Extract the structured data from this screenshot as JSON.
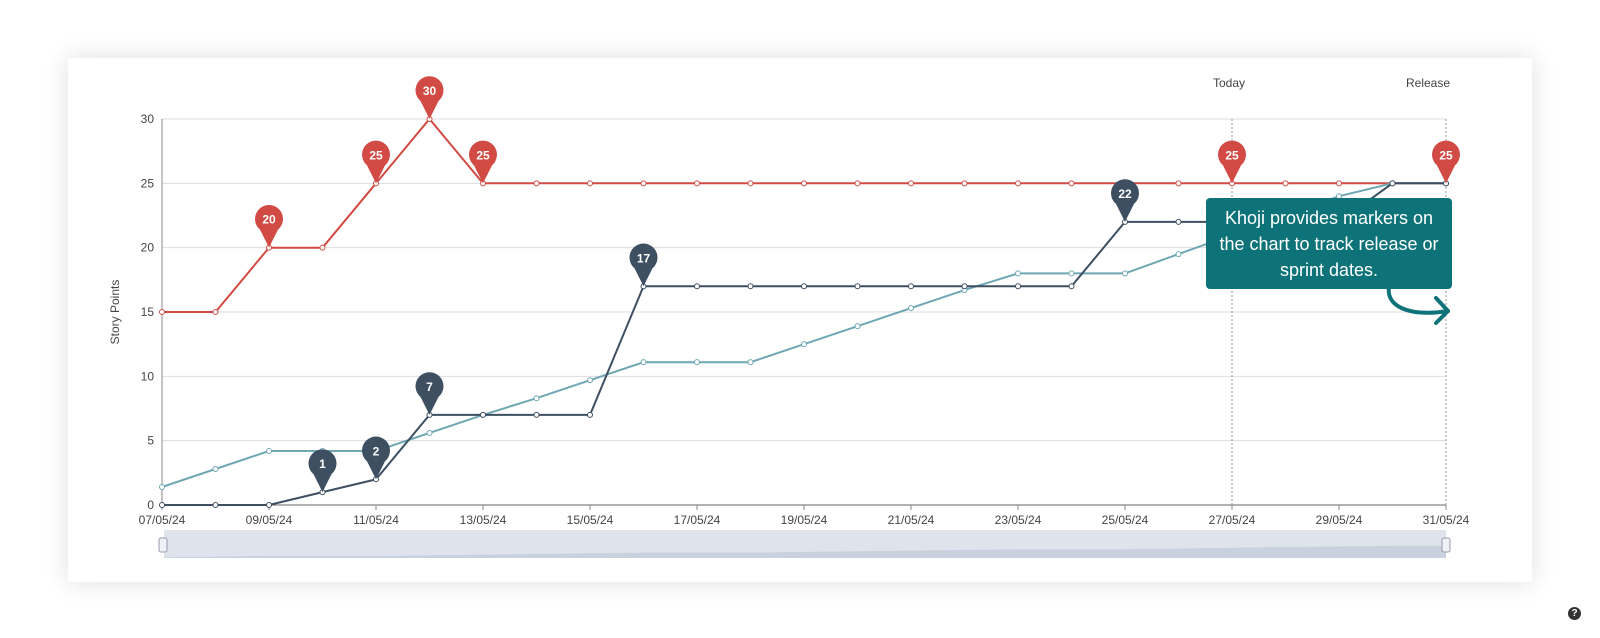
{
  "chart_data": {
    "type": "line",
    "ylabel": "Story Points",
    "ylim": [
      0,
      30
    ],
    "yticks": [
      0,
      5,
      10,
      15,
      20,
      25,
      30
    ],
    "x": [
      "07/05/24",
      "08/05/24",
      "09/05/24",
      "10/05/24",
      "11/05/24",
      "12/05/24",
      "13/05/24",
      "14/05/24",
      "15/05/24",
      "16/05/24",
      "17/05/24",
      "18/05/24",
      "19/05/24",
      "20/05/24",
      "21/05/24",
      "22/05/24",
      "23/05/24",
      "24/05/24",
      "25/05/24",
      "26/05/24",
      "27/05/24",
      "28/05/24",
      "29/05/24",
      "30/05/24",
      "31/05/24"
    ],
    "xticks": [
      "07/05/24",
      "09/05/24",
      "11/05/24",
      "13/05/24",
      "15/05/24",
      "17/05/24",
      "19/05/24",
      "21/05/24",
      "23/05/24",
      "25/05/24",
      "27/05/24",
      "29/05/24",
      "31/05/24"
    ],
    "series": [
      {
        "color": "#d14b44",
        "values": [
          15,
          15,
          20,
          20,
          25,
          30,
          25,
          25,
          25,
          25,
          25,
          25,
          25,
          25,
          25,
          25,
          25,
          25,
          25,
          25,
          25,
          25,
          25,
          25,
          25
        ],
        "markers": [
          {
            "x": "09/05/24",
            "value": 20,
            "label": "20"
          },
          {
            "x": "11/05/24",
            "value": 25,
            "label": "25"
          },
          {
            "x": "12/05/24",
            "value": 30,
            "label": "30"
          },
          {
            "x": "13/05/24",
            "value": 25,
            "label": "25"
          },
          {
            "x": "27/05/24",
            "value": 25,
            "label": "25"
          },
          {
            "x": "31/05/24",
            "value": 25,
            "label": "25"
          }
        ]
      },
      {
        "color": "#6fa7b3",
        "values": [
          1.4,
          2.8,
          4.2,
          4.2,
          4.2,
          5.6,
          7.0,
          8.3,
          9.7,
          11.1,
          11.1,
          11.1,
          12.5,
          13.9,
          15.3,
          16.7,
          18,
          18,
          18,
          19.5,
          21,
          22.5,
          24,
          25,
          25
        ]
      },
      {
        "color": "#3d4f61",
        "values": [
          0,
          0,
          0,
          1,
          2,
          7,
          7,
          7,
          7,
          17,
          17,
          17,
          17,
          17,
          17,
          17,
          17,
          17,
          22,
          22,
          22,
          22,
          22,
          25,
          25
        ],
        "markers": [
          {
            "x": "10/05/24",
            "value": 1,
            "label": "1"
          },
          {
            "x": "11/05/24",
            "value": 2,
            "label": "2"
          },
          {
            "x": "12/05/24",
            "value": 7,
            "label": "7"
          },
          {
            "x": "16/05/24",
            "value": 17,
            "label": "17"
          },
          {
            "x": "25/05/24",
            "value": 22,
            "label": "22"
          }
        ]
      }
    ],
    "vlines": [
      {
        "x": "27/05/24",
        "label": "Today"
      },
      {
        "x": "31/05/24",
        "label": "Release"
      }
    ],
    "navigator_values": [
      1.4,
      2.8,
      4.2,
      4.2,
      4.2,
      5.6,
      7.0,
      8.3,
      9.7,
      11.1,
      11.1,
      11.1,
      12.5,
      13.9,
      15.3,
      16.7,
      18,
      18,
      18,
      19.5,
      21,
      22.5,
      24,
      25,
      25
    ],
    "grid": true
  },
  "callout": {
    "text": "Khoji provides markers on the chart to track release or sprint dates."
  },
  "help_icon": {
    "name": "help-icon",
    "glyph": "?"
  }
}
